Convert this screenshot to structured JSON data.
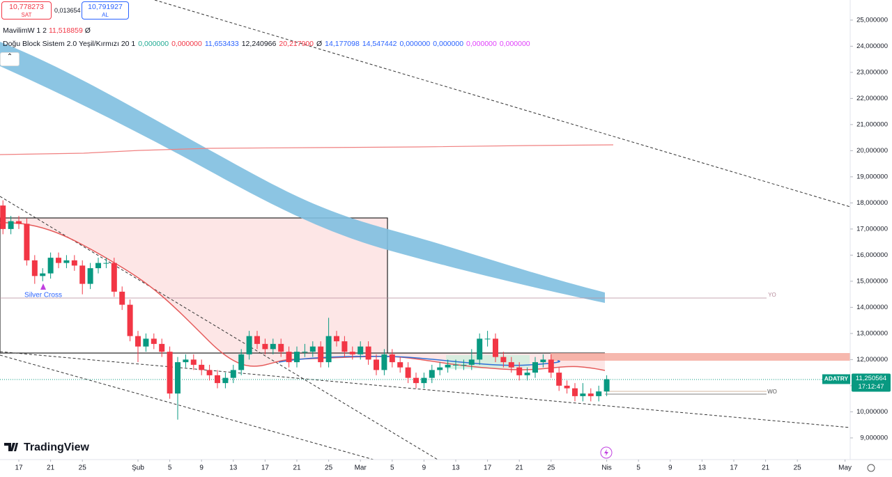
{
  "toolbar": {
    "sell_price": "10,778273",
    "sell_label": "SAT",
    "spread": "0,013654",
    "buy_price": "10,791927",
    "buy_label": "AL"
  },
  "legend": {
    "line1": {
      "name": "MavilimW 1 2",
      "value": "11,518859",
      "extra": "Ø"
    },
    "line2": {
      "name": "Doğu Block Sistem 2.0 Yeşil/Kırmızı 20 1",
      "values": [
        {
          "text": "0,000000",
          "color": "#22ab94"
        },
        {
          "text": "0,000000",
          "color": "#f23645"
        },
        {
          "text": "11,653433",
          "color": "#2962ff"
        },
        {
          "text": "12,240966",
          "color": "#131722"
        },
        {
          "text": "20,217900",
          "color": "#f23645"
        },
        {
          "text": "Ø",
          "color": "#131722"
        },
        {
          "text": "14,177098",
          "color": "#2962ff"
        },
        {
          "text": "14,547442",
          "color": "#2962ff"
        },
        {
          "text": "0,000000",
          "color": "#2962ff"
        },
        {
          "text": "0,000000",
          "color": "#2962ff"
        },
        {
          "text": "0,000000",
          "color": "#e040fb"
        },
        {
          "text": "0,000000",
          "color": "#e040fb"
        }
      ]
    }
  },
  "chart_data": {
    "type": "candlestick",
    "up_color": "#089981",
    "down_color": "#f23645",
    "x": [
      0,
      1,
      2,
      3,
      4,
      5,
      6,
      7,
      8,
      9,
      10,
      11,
      12,
      13,
      14,
      15,
      16,
      17,
      18,
      19,
      20,
      21,
      22,
      23,
      24,
      25,
      26,
      27,
      28,
      29,
      30,
      31,
      32,
      33,
      34,
      35,
      36,
      37,
      38,
      39,
      40,
      41,
      42,
      43,
      44,
      45,
      46,
      47,
      48,
      49,
      50,
      51,
      52,
      53,
      54,
      55,
      56,
      57,
      58,
      59,
      60,
      61,
      62,
      63,
      64,
      65,
      66,
      67,
      68,
      69,
      70,
      71,
      72,
      73,
      74,
      75,
      76
    ],
    "open": [
      17.9,
      17.0,
      17.3,
      17.2,
      15.8,
      15.2,
      15.3,
      15.9,
      15.7,
      15.8,
      15.6,
      14.9,
      15.5,
      15.7,
      15.7,
      14.6,
      14.1,
      12.9,
      12.5,
      12.8,
      12.6,
      12.3,
      10.7,
      11.9,
      12.0,
      11.8,
      11.6,
      11.4,
      11.1,
      11.3,
      11.6,
      12.2,
      12.9,
      12.6,
      12.4,
      12.6,
      12.3,
      11.9,
      12.3,
      12.3,
      12.5,
      11.9,
      12.9,
      12.7,
      12.3,
      12.2,
      12.5,
      12.0,
      11.6,
      12.2,
      11.9,
      11.7,
      11.3,
      11.1,
      11.3,
      11.6,
      11.7,
      11.8,
      11.8,
      11.8,
      12.0,
      12.8,
      12.8,
      12.1,
      11.9,
      11.7,
      11.4,
      11.5,
      11.9,
      12.0,
      11.5,
      11.0,
      10.9,
      10.6,
      10.7,
      10.6,
      10.78
    ],
    "high": [
      18.1,
      17.5,
      17.5,
      17.4,
      16.0,
      15.5,
      16.1,
      16.1,
      16.0,
      16.0,
      15.8,
      15.7,
      15.9,
      15.9,
      15.9,
      14.8,
      14.3,
      13.1,
      13.0,
      13.0,
      12.8,
      12.5,
      12.1,
      12.2,
      12.2,
      12.0,
      11.8,
      11.6,
      11.5,
      11.8,
      12.4,
      13.1,
      13.1,
      12.8,
      12.8,
      12.8,
      12.5,
      12.5,
      12.6,
      12.7,
      12.7,
      13.6,
      13.1,
      12.9,
      12.5,
      12.7,
      12.7,
      12.2,
      12.4,
      12.4,
      12.1,
      11.9,
      11.5,
      11.5,
      11.8,
      11.9,
      12.0,
      12.0,
      12.0,
      12.4,
      13.0,
      13.1,
      13.0,
      12.3,
      12.1,
      11.9,
      11.7,
      12.1,
      12.2,
      12.2,
      11.7,
      11.2,
      11.1,
      11.1,
      10.9,
      11.0,
      11.4
    ],
    "low": [
      16.8,
      16.8,
      17.0,
      15.6,
      14.9,
      15.0,
      15.1,
      15.5,
      15.5,
      15.4,
      14.5,
      14.7,
      15.3,
      15.5,
      14.4,
      13.9,
      12.7,
      11.9,
      12.3,
      12.4,
      12.1,
      10.5,
      9.7,
      11.7,
      11.6,
      11.4,
      11.2,
      10.9,
      10.9,
      11.1,
      11.4,
      12.0,
      12.4,
      12.2,
      12.2,
      12.1,
      11.7,
      11.7,
      12.1,
      12.1,
      11.7,
      11.7,
      12.5,
      12.1,
      12.0,
      12.0,
      11.8,
      11.4,
      11.4,
      11.7,
      11.5,
      11.1,
      10.9,
      10.9,
      11.1,
      11.4,
      11.5,
      11.6,
      11.6,
      11.6,
      11.8,
      12.5,
      11.9,
      11.7,
      11.5,
      11.2,
      11.2,
      11.3,
      11.7,
      11.3,
      10.8,
      10.7,
      10.4,
      10.4,
      10.4,
      10.4,
      10.6
    ],
    "close": [
      17.0,
      17.3,
      17.2,
      15.8,
      15.2,
      15.3,
      15.9,
      15.7,
      15.8,
      15.6,
      14.9,
      15.5,
      15.7,
      15.7,
      14.6,
      14.1,
      12.9,
      12.5,
      12.8,
      12.6,
      12.3,
      10.7,
      11.9,
      12.0,
      11.8,
      11.6,
      11.4,
      11.1,
      11.3,
      11.6,
      12.2,
      12.9,
      12.6,
      12.4,
      12.6,
      12.3,
      11.9,
      12.3,
      12.3,
      12.5,
      11.9,
      12.9,
      12.7,
      12.3,
      12.2,
      12.5,
      12.0,
      11.6,
      12.2,
      11.9,
      11.7,
      11.3,
      11.1,
      11.3,
      11.6,
      11.7,
      11.8,
      11.8,
      11.8,
      12.0,
      12.8,
      12.8,
      12.1,
      11.9,
      11.7,
      11.4,
      11.5,
      11.9,
      12.0,
      11.5,
      11.0,
      10.9,
      10.6,
      10.7,
      10.6,
      10.78,
      11.250564
    ],
    "xlim": [
      -0.37,
      106.65
    ],
    "xticks": [
      {
        "value": 2,
        "label": "17"
      },
      {
        "value": 6,
        "label": "21"
      },
      {
        "value": 10,
        "label": "25"
      },
      {
        "value": 17,
        "label": "Şub"
      },
      {
        "value": 21,
        "label": "5"
      },
      {
        "value": 25,
        "label": "9"
      },
      {
        "value": 29,
        "label": "13"
      },
      {
        "value": 33,
        "label": "17"
      },
      {
        "value": 37,
        "label": "21"
      },
      {
        "value": 41,
        "label": "25"
      },
      {
        "value": 45,
        "label": "Mar"
      },
      {
        "value": 49,
        "label": "5"
      },
      {
        "value": 53,
        "label": "9"
      },
      {
        "value": 57,
        "label": "13"
      },
      {
        "value": 61,
        "label": "17"
      },
      {
        "value": 65,
        "label": "21"
      },
      {
        "value": 69,
        "label": "25"
      },
      {
        "value": 76,
        "label": "Nis"
      },
      {
        "value": 80,
        "label": "5"
      },
      {
        "value": 84,
        "label": "9"
      },
      {
        "value": 88,
        "label": "13"
      },
      {
        "value": 92,
        "label": "17"
      },
      {
        "value": 96,
        "label": "21"
      },
      {
        "value": 100,
        "label": "25"
      },
      {
        "value": 106,
        "label": "May"
      }
    ],
    "ylim": [
      8.17,
      25.77
    ],
    "yticks": [
      {
        "value": 25,
        "label": "25,000000"
      },
      {
        "value": 24,
        "label": "24,000000"
      },
      {
        "value": 23,
        "label": "23,000000"
      },
      {
        "value": 22,
        "label": "22,000000"
      },
      {
        "value": 21,
        "label": "21,000000"
      },
      {
        "value": 20,
        "label": "20,000000"
      },
      {
        "value": 19,
        "label": "19,000000"
      },
      {
        "value": 18,
        "label": "18,000000"
      },
      {
        "value": 17,
        "label": "17,000000"
      },
      {
        "value": 16,
        "label": "16,000000"
      },
      {
        "value": 15,
        "label": "15,000000"
      },
      {
        "value": 14,
        "label": "14,000000"
      },
      {
        "value": 13,
        "label": "13,000000"
      },
      {
        "value": 12,
        "label": "12,000000"
      },
      {
        "value": 11,
        "label": "11,000000"
      },
      {
        "value": 10,
        "label": "10,000000"
      },
      {
        "value": 9,
        "label": "9,000000"
      }
    ],
    "price_tag": {
      "symbol": "ADATRY",
      "price": "11,250564",
      "countdown": "17:12:47"
    },
    "annotations": {
      "signal": "Silver Cross",
      "yo": "YO",
      "wo": "WO"
    }
  },
  "brand": "TradingView"
}
